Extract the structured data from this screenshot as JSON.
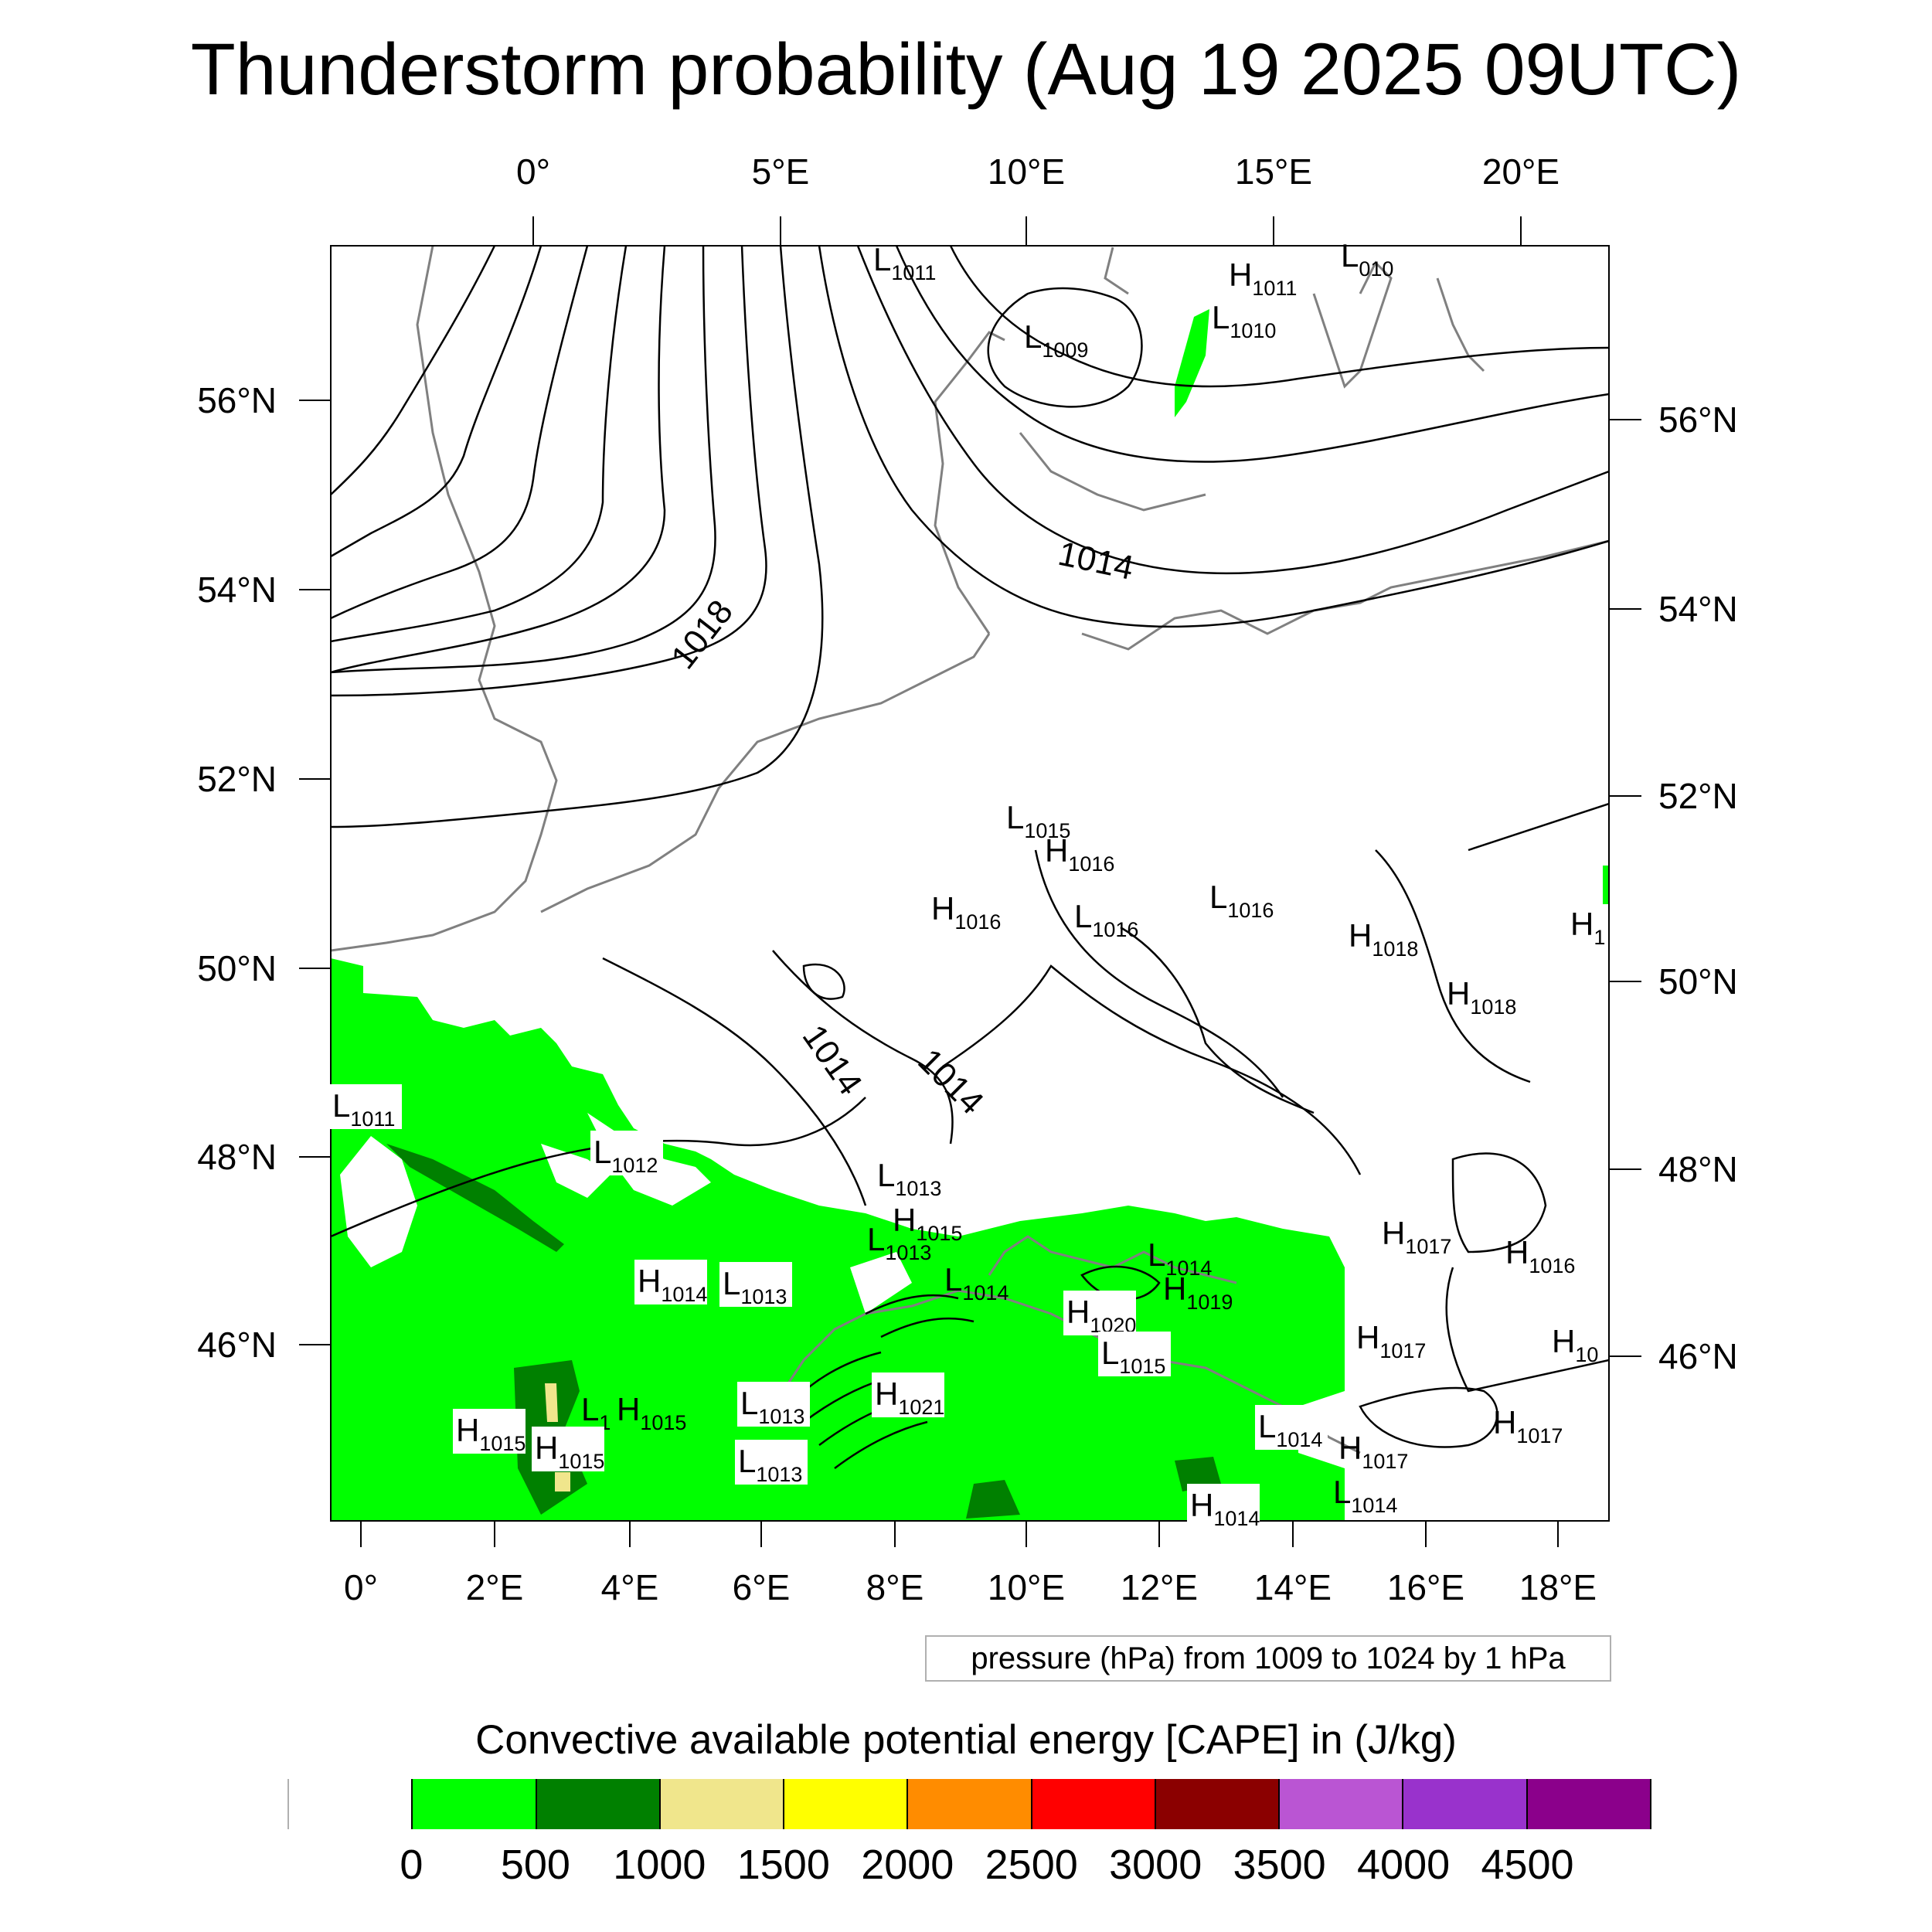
{
  "title": "Thunderstorm probability (Aug 19 2025 09UTC)",
  "axes": {
    "top_lon": [
      "0°",
      "5°E",
      "10°E",
      "15°E",
      "20°E"
    ],
    "bottom_lon": [
      "0°",
      "2°E",
      "4°E",
      "6°E",
      "8°E",
      "10°E",
      "12°E",
      "14°E",
      "16°E",
      "18°E"
    ],
    "left_lat": [
      "56°N",
      "54°N",
      "52°N",
      "50°N",
      "48°N",
      "46°N"
    ],
    "right_lat": [
      "56°N",
      "54°N",
      "52°N",
      "50°N",
      "48°N",
      "46°N"
    ]
  },
  "isobar_labels": [
    "1018",
    "1014",
    "1014",
    "1014"
  ],
  "pressure_systems": [
    {
      "t": "L",
      "v": "1011"
    },
    {
      "t": "H",
      "v": "1011"
    },
    {
      "t": "L",
      "v": "010"
    },
    {
      "t": "L",
      "v": "1009"
    },
    {
      "t": "L",
      "v": "1010"
    },
    {
      "t": "L",
      "v": "1015"
    },
    {
      "t": "H",
      "v": "1016"
    },
    {
      "t": "H",
      "v": "1016"
    },
    {
      "t": "L",
      "v": "1016"
    },
    {
      "t": "L",
      "v": "1016"
    },
    {
      "t": "H",
      "v": "1018"
    },
    {
      "t": "H",
      "v": "1"
    },
    {
      "t": "H",
      "v": "1018"
    },
    {
      "t": "L",
      "v": "1011"
    },
    {
      "t": "L",
      "v": "1012"
    },
    {
      "t": "L",
      "v": "1013"
    },
    {
      "t": "H",
      "v": "1015"
    },
    {
      "t": "L",
      "v": "1013"
    },
    {
      "t": "L",
      "v": "1014"
    },
    {
      "t": "L",
      "v": "1014"
    },
    {
      "t": "H",
      "v": "1017"
    },
    {
      "t": "H",
      "v": "1016"
    },
    {
      "t": "H",
      "v": "1014"
    },
    {
      "t": "L",
      "v": "1013"
    },
    {
      "t": "H",
      "v": "1020"
    },
    {
      "t": "H",
      "v": "1019"
    },
    {
      "t": "H",
      "v": "1017"
    },
    {
      "t": "H",
      "v": "10"
    },
    {
      "t": "L",
      "v": "1015"
    },
    {
      "t": "L",
      "v": "1013"
    },
    {
      "t": "H",
      "v": "1021"
    },
    {
      "t": "L",
      "v": "1"
    },
    {
      "t": "H",
      "v": "1015"
    },
    {
      "t": "H",
      "v": "1015"
    },
    {
      "t": "H",
      "v": "1015"
    },
    {
      "t": "L",
      "v": "1013"
    },
    {
      "t": "L",
      "v": "1014"
    },
    {
      "t": "H",
      "v": "1017"
    },
    {
      "t": "H",
      "v": "1017"
    },
    {
      "t": "H",
      "v": "1014"
    },
    {
      "t": "L",
      "v": "1014"
    }
  ],
  "pressure_note": "pressure (hPa) from 1009 to 1024 by 1 hPa",
  "colorbar": {
    "title": "Convective available potential energy [CAPE] in (J/kg)",
    "colors": [
      "#ffffff",
      "#00ff00",
      "#008000",
      "#f0e68c",
      "#ffff00",
      "#ff8c00",
      "#ff0000",
      "#8b0000",
      "#ba55d3",
      "#9932cc",
      "#8b008b"
    ],
    "ticks": [
      "0",
      "500",
      "1000",
      "1500",
      "2000",
      "2500",
      "3000",
      "3500",
      "4000",
      "4500"
    ]
  },
  "legend_colors": {
    "cape_low": "#00ff00",
    "cape_mid": "#008000",
    "cape_high": "#f0e68c",
    "coast": "#808080",
    "isobar": "#000000"
  }
}
